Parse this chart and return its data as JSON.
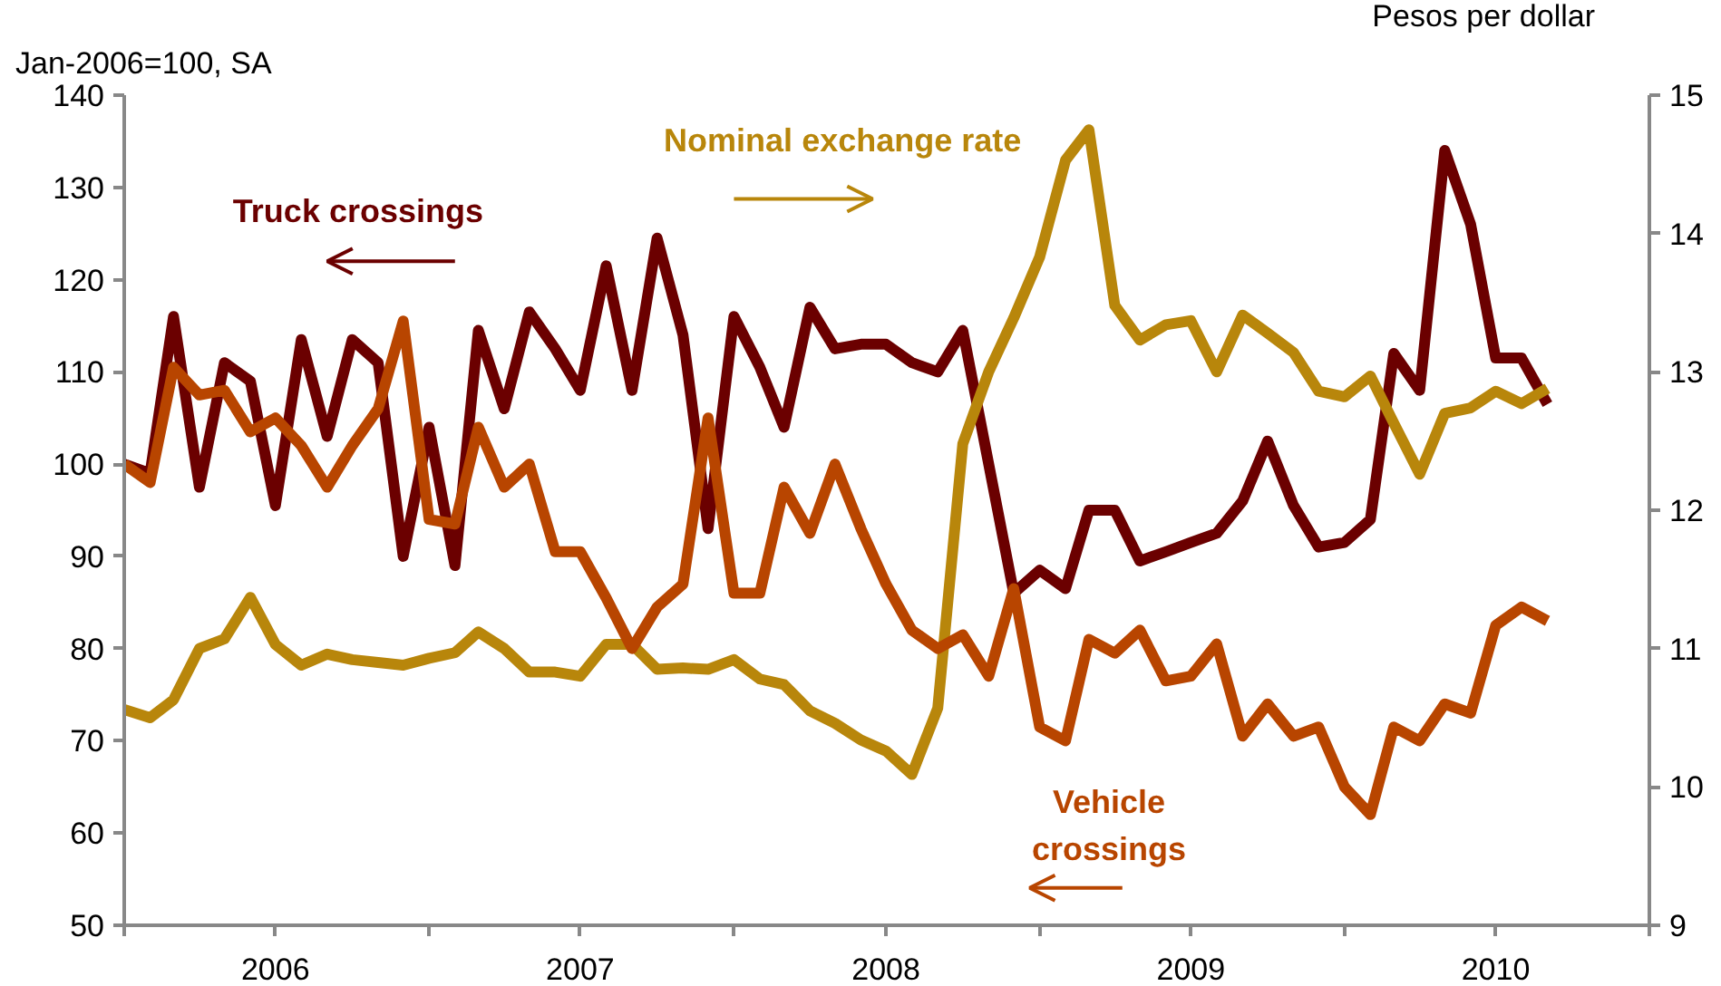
{
  "chart_data": {
    "type": "line",
    "ylabel": "Jan-2006=100, SA",
    "y2label": "Pesos per dollar",
    "x": [
      "2006-01",
      "2006-02",
      "2006-03",
      "2006-04",
      "2006-05",
      "2006-06",
      "2006-07",
      "2006-08",
      "2006-09",
      "2006-10",
      "2006-11",
      "2006-12",
      "2007-01",
      "2007-02",
      "2007-03",
      "2007-04",
      "2007-05",
      "2007-06",
      "2007-07",
      "2007-08",
      "2007-09",
      "2007-10",
      "2007-11",
      "2007-12",
      "2008-01",
      "2008-02",
      "2008-03",
      "2008-04",
      "2008-05",
      "2008-06",
      "2008-07",
      "2008-08",
      "2008-09",
      "2008-10",
      "2008-11",
      "2008-12",
      "2009-01",
      "2009-02",
      "2009-03",
      "2009-04",
      "2009-05",
      "2009-06",
      "2009-07",
      "2009-08",
      "2009-09",
      "2009-10",
      "2009-11",
      "2009-12",
      "2010-01",
      "2010-02",
      "2010-03",
      "2010-04",
      "2010-05",
      "2010-06",
      "2010-07",
      "2010-08",
      "2010-09"
    ],
    "series": [
      {
        "name": "Truck crossings",
        "color": "#6b0000",
        "values": [
          100,
          99,
          116,
          97.5,
          111,
          109,
          95.5,
          113.5,
          103,
          113.5,
          111,
          90,
          104,
          89,
          114.5,
          106,
          116.5,
          112.5,
          108,
          121.5,
          108,
          124.5,
          114,
          93,
          116,
          110.5,
          104,
          117,
          112.5,
          113,
          113,
          111,
          110,
          114.5,
          100,
          86,
          88.5,
          86.5,
          95,
          95,
          89.5,
          90.5,
          91.5,
          92.5,
          96,
          102.5,
          95.5,
          91,
          91.5,
          94,
          112,
          108,
          134,
          126,
          111.5,
          111.5,
          106.5
        ]
      },
      {
        "name": "Nominal exchange rate",
        "color": "#b8860b",
        "axis": "y2",
        "values": [
          10.56,
          10.5,
          10.63,
          11.0,
          11.07,
          11.37,
          11.03,
          10.88,
          10.96,
          10.92,
          10.9,
          10.88,
          10.93,
          10.97,
          11.12,
          11.0,
          10.83,
          10.83,
          10.8,
          11.03,
          11.03,
          10.85,
          10.86,
          10.85,
          10.92,
          10.78,
          10.74,
          10.55,
          10.46,
          10.34,
          10.26,
          10.09,
          10.57,
          12.48,
          13.0,
          13.39,
          13.83,
          14.53,
          14.75,
          13.48,
          13.23,
          13.34,
          13.37,
          13.0,
          13.41,
          13.28,
          13.14,
          12.86,
          12.82,
          12.97,
          12.63,
          12.26,
          12.7,
          12.74,
          12.86,
          12.77,
          12.88
        ]
      },
      {
        "name": "Vehicle crossings",
        "color": "#b84500",
        "values": [
          100,
          98,
          110.5,
          107.5,
          108,
          103.5,
          105,
          102,
          97.5,
          102,
          106,
          115.5,
          94,
          93.5,
          104,
          97.5,
          100,
          90.5,
          90.5,
          85.5,
          80,
          84.5,
          87,
          105,
          86,
          86,
          97.5,
          92.5,
          100,
          93,
          87,
          82,
          80,
          81.5,
          77,
          86.5,
          71.5,
          70,
          81,
          79.5,
          82,
          76.5,
          77,
          80.5,
          70.5,
          74,
          70.5,
          71.5,
          65,
          62,
          71.5,
          70,
          74,
          73,
          82.5,
          84.5,
          83
        ]
      }
    ],
    "xlim": [
      "2006-01",
      "2011-01"
    ],
    "xticks": [
      {
        "value": "2006-01",
        "label": null
      },
      {
        "value": "2006-07",
        "label": "2006"
      },
      {
        "value": "2007-01",
        "label": null
      },
      {
        "value": "2007-07",
        "label": "2007"
      },
      {
        "value": "2008-01",
        "label": null
      },
      {
        "value": "2008-07",
        "label": "2008"
      },
      {
        "value": "2009-01",
        "label": null
      },
      {
        "value": "2009-07",
        "label": "2009"
      },
      {
        "value": "2010-01",
        "label": null
      },
      {
        "value": "2010-07",
        "label": "2010"
      },
      {
        "value": "2011-01",
        "label": null
      }
    ],
    "ylim": [
      50,
      140
    ],
    "yticks": [
      50,
      60,
      70,
      80,
      90,
      100,
      110,
      120,
      130,
      140
    ],
    "y2lim": [
      9,
      15
    ],
    "y2ticks": [
      9,
      10,
      11,
      12,
      13,
      14,
      15
    ],
    "grid": false,
    "legend": false,
    "line_style": "solid",
    "marker": "none"
  }
}
